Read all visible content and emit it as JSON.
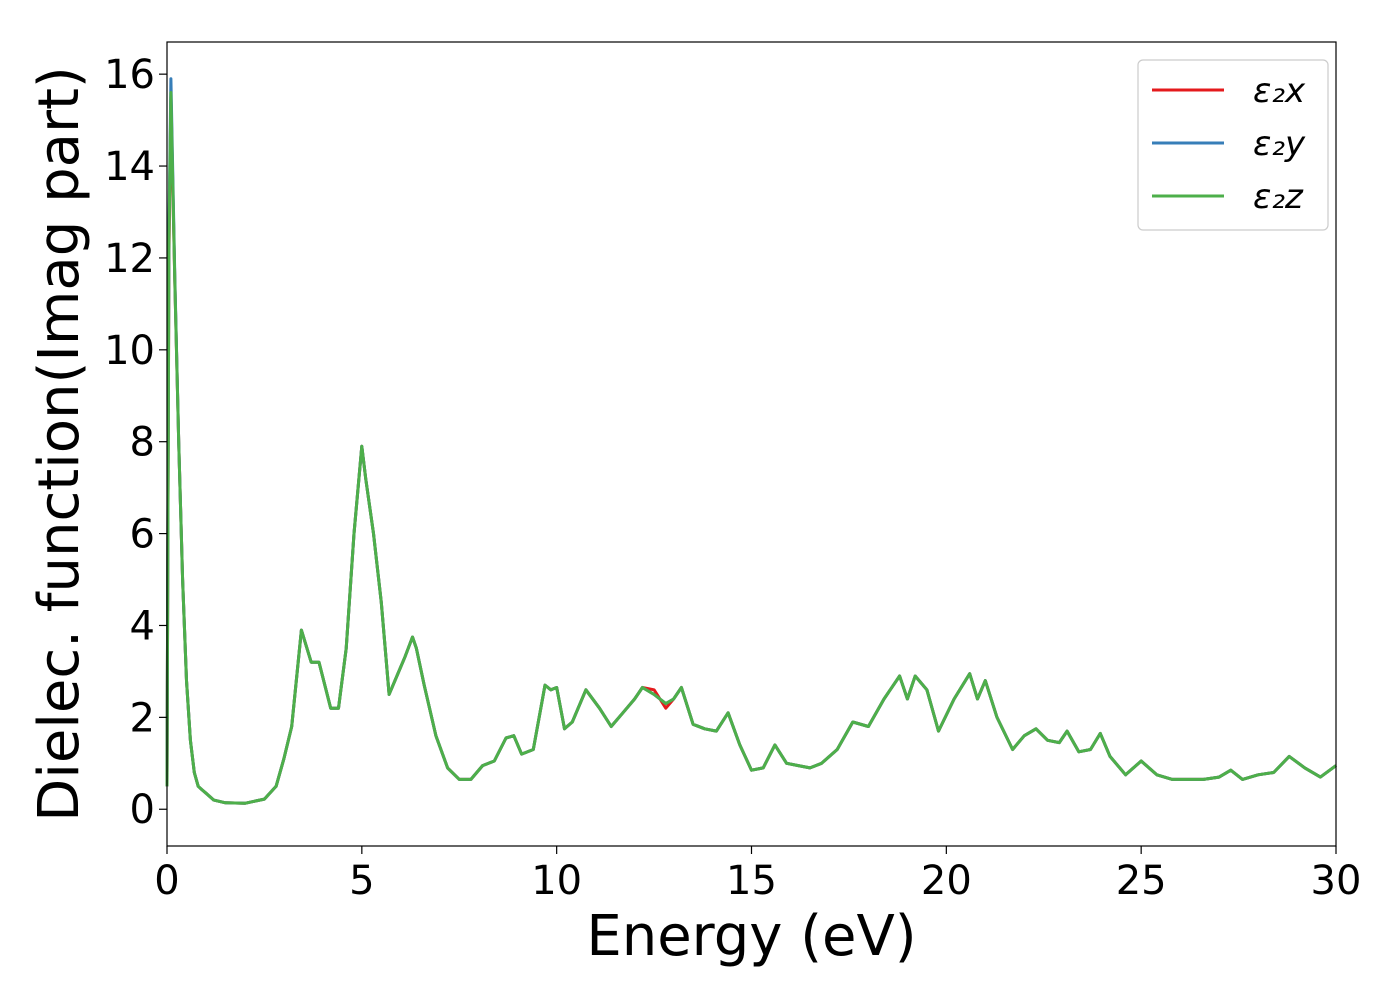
{
  "chart_data": {
    "type": "line",
    "xlabel": "Energy (eV)",
    "ylabel": "Dielec. function(Imag part)",
    "xlim": [
      0,
      30
    ],
    "ylim": [
      -0.8,
      16.7
    ],
    "xticks": [
      0,
      5,
      10,
      15,
      20,
      25,
      30
    ],
    "yticks": [
      0,
      2,
      4,
      6,
      8,
      10,
      12,
      14,
      16
    ],
    "grid": false,
    "legend_position": "top-right",
    "series": [
      {
        "name": "ε₂x",
        "color": "#e41a1c",
        "x": [
          0,
          0.05,
          0.1,
          0.15,
          0.2,
          0.3,
          0.4,
          0.5,
          0.6,
          0.7,
          0.8,
          0.9,
          1.0,
          1.2,
          1.5,
          2.0,
          2.5,
          2.8,
          3.0,
          3.2,
          3.45,
          3.7,
          3.9,
          4.2,
          4.4,
          4.6,
          4.8,
          5.0,
          5.1,
          5.3,
          5.5,
          5.7,
          5.9,
          6.1,
          6.3,
          6.4,
          6.6,
          6.9,
          7.2,
          7.5,
          7.8,
          8.1,
          8.4,
          8.7,
          8.9,
          9.1,
          9.4,
          9.7,
          9.85,
          10.0,
          10.2,
          10.4,
          10.75,
          11.1,
          11.4,
          11.7,
          12.0,
          12.2,
          12.5,
          12.8,
          13.0,
          13.2,
          13.5,
          13.8,
          14.1,
          14.4,
          14.7,
          15.0,
          15.3,
          15.6,
          15.9,
          16.2,
          16.5,
          16.8,
          17.2,
          17.6,
          18.0,
          18.4,
          18.8,
          19.0,
          19.2,
          19.5,
          19.8,
          20.2,
          20.6,
          20.8,
          21.0,
          21.3,
          21.7,
          22.0,
          22.3,
          22.6,
          22.9,
          23.1,
          23.4,
          23.7,
          23.95,
          24.2,
          24.6,
          25.0,
          25.4,
          25.8,
          26.2,
          26.6,
          27.0,
          27.3,
          27.6,
          28.0,
          28.4,
          28.8,
          29.2,
          29.6,
          30.0
        ],
        "values": [
          0.5,
          12.0,
          15.5,
          13.5,
          11.5,
          8.0,
          5.0,
          2.8,
          1.5,
          0.8,
          0.5,
          0.42,
          0.35,
          0.2,
          0.14,
          0.13,
          0.22,
          0.5,
          1.1,
          1.8,
          3.9,
          3.2,
          3.2,
          2.2,
          2.2,
          3.5,
          6.0,
          7.9,
          7.2,
          6.0,
          4.5,
          2.5,
          2.9,
          3.3,
          3.75,
          3.5,
          2.7,
          1.6,
          0.9,
          0.65,
          0.65,
          0.95,
          1.05,
          1.55,
          1.6,
          1.2,
          1.3,
          2.7,
          2.6,
          2.65,
          1.75,
          1.9,
          2.6,
          2.2,
          1.8,
          2.1,
          2.4,
          2.65,
          2.6,
          2.2,
          2.4,
          2.65,
          1.85,
          1.75,
          1.7,
          2.1,
          1.4,
          0.85,
          0.9,
          1.4,
          1.0,
          0.95,
          0.9,
          1.0,
          1.3,
          1.9,
          1.8,
          2.4,
          2.9,
          2.4,
          2.9,
          2.6,
          1.7,
          2.4,
          2.95,
          2.4,
          2.8,
          2.0,
          1.3,
          1.6,
          1.75,
          1.5,
          1.45,
          1.7,
          1.25,
          1.3,
          1.65,
          1.15,
          0.75,
          1.05,
          0.75,
          0.65,
          0.65,
          0.65,
          0.7,
          0.85,
          0.65,
          0.75,
          0.8,
          1.15,
          0.9,
          0.7,
          0.95
        ]
      },
      {
        "name": "ε₂y",
        "color": "#377eb8",
        "x": [
          0,
          0.05,
          0.1,
          0.15,
          0.2,
          0.3,
          0.4,
          0.5,
          0.6,
          0.7,
          0.8,
          0.9,
          1.0,
          1.2,
          1.5,
          2.0,
          2.5,
          2.8,
          3.0,
          3.2,
          3.45,
          3.7,
          3.9,
          4.2,
          4.4,
          4.6,
          4.8,
          5.0,
          5.1,
          5.3,
          5.5,
          5.7,
          5.9,
          6.1,
          6.3,
          6.4,
          6.6,
          6.9,
          7.2,
          7.5,
          7.8,
          8.1,
          8.4,
          8.7,
          8.9,
          9.1,
          9.4,
          9.7,
          9.85,
          10.0,
          10.2,
          10.4,
          10.75,
          11.1,
          11.4,
          11.7,
          12.0,
          12.2,
          12.5,
          12.8,
          13.0,
          13.2,
          13.5,
          13.8,
          14.1,
          14.4,
          14.7,
          15.0,
          15.3,
          15.6,
          15.9,
          16.2,
          16.5,
          16.8,
          17.2,
          17.6,
          18.0,
          18.4,
          18.8,
          19.0,
          19.2,
          19.5,
          19.8,
          20.2,
          20.6,
          20.8,
          21.0,
          21.3,
          21.7,
          22.0,
          22.3,
          22.6,
          22.9,
          23.1,
          23.4,
          23.7,
          23.95,
          24.2,
          24.6,
          25.0,
          25.4,
          25.8,
          26.2,
          26.6,
          27.0,
          27.3,
          27.6,
          28.0,
          28.4,
          28.8,
          29.2,
          29.6,
          30.0
        ],
        "values": [
          0.5,
          12.5,
          15.9,
          13.8,
          11.6,
          8.0,
          5.0,
          2.8,
          1.5,
          0.8,
          0.5,
          0.42,
          0.35,
          0.2,
          0.14,
          0.13,
          0.22,
          0.5,
          1.1,
          1.8,
          3.9,
          3.2,
          3.2,
          2.2,
          2.2,
          3.5,
          6.0,
          7.9,
          7.2,
          6.0,
          4.5,
          2.5,
          2.9,
          3.3,
          3.75,
          3.5,
          2.7,
          1.6,
          0.9,
          0.65,
          0.65,
          0.95,
          1.05,
          1.55,
          1.6,
          1.2,
          1.3,
          2.7,
          2.6,
          2.65,
          1.75,
          1.9,
          2.6,
          2.2,
          1.8,
          2.1,
          2.4,
          2.65,
          2.5,
          2.3,
          2.4,
          2.65,
          1.85,
          1.75,
          1.7,
          2.1,
          1.4,
          0.85,
          0.9,
          1.4,
          1.0,
          0.95,
          0.9,
          1.0,
          1.3,
          1.9,
          1.8,
          2.4,
          2.9,
          2.4,
          2.9,
          2.6,
          1.7,
          2.4,
          2.95,
          2.4,
          2.8,
          2.0,
          1.3,
          1.6,
          1.75,
          1.5,
          1.45,
          1.7,
          1.25,
          1.3,
          1.65,
          1.15,
          0.75,
          1.05,
          0.75,
          0.65,
          0.65,
          0.65,
          0.7,
          0.85,
          0.65,
          0.75,
          0.8,
          1.15,
          0.9,
          0.7,
          0.95
        ]
      },
      {
        "name": "ε₂z",
        "color": "#4daf4a",
        "x": [
          0,
          0.05,
          0.1,
          0.15,
          0.2,
          0.3,
          0.4,
          0.5,
          0.6,
          0.7,
          0.8,
          0.9,
          1.0,
          1.2,
          1.5,
          2.0,
          2.5,
          2.8,
          3.0,
          3.2,
          3.45,
          3.7,
          3.9,
          4.2,
          4.4,
          4.6,
          4.8,
          5.0,
          5.1,
          5.3,
          5.5,
          5.7,
          5.9,
          6.1,
          6.3,
          6.4,
          6.6,
          6.9,
          7.2,
          7.5,
          7.8,
          8.1,
          8.4,
          8.7,
          8.9,
          9.1,
          9.4,
          9.7,
          9.85,
          10.0,
          10.2,
          10.4,
          10.75,
          11.1,
          11.4,
          11.7,
          12.0,
          12.2,
          12.5,
          12.8,
          13.0,
          13.2,
          13.5,
          13.8,
          14.1,
          14.4,
          14.7,
          15.0,
          15.3,
          15.6,
          15.9,
          16.2,
          16.5,
          16.8,
          17.2,
          17.6,
          18.0,
          18.4,
          18.8,
          19.0,
          19.2,
          19.5,
          19.8,
          20.2,
          20.6,
          20.8,
          21.0,
          21.3,
          21.7,
          22.0,
          22.3,
          22.6,
          22.9,
          23.1,
          23.4,
          23.7,
          23.95,
          24.2,
          24.6,
          25.0,
          25.4,
          25.8,
          26.2,
          26.6,
          27.0,
          27.3,
          27.6,
          28.0,
          28.4,
          28.8,
          29.2,
          29.6,
          30.0
        ],
        "values": [
          0.5,
          12.2,
          15.6,
          13.6,
          11.5,
          8.0,
          5.0,
          2.8,
          1.5,
          0.8,
          0.5,
          0.42,
          0.35,
          0.2,
          0.14,
          0.13,
          0.22,
          0.5,
          1.1,
          1.8,
          3.9,
          3.2,
          3.2,
          2.2,
          2.2,
          3.5,
          6.0,
          7.9,
          7.2,
          6.0,
          4.5,
          2.5,
          2.9,
          3.3,
          3.75,
          3.5,
          2.7,
          1.6,
          0.9,
          0.65,
          0.65,
          0.95,
          1.05,
          1.55,
          1.6,
          1.2,
          1.3,
          2.7,
          2.6,
          2.65,
          1.75,
          1.9,
          2.6,
          2.2,
          1.8,
          2.1,
          2.4,
          2.65,
          2.5,
          2.3,
          2.4,
          2.65,
          1.85,
          1.75,
          1.7,
          2.1,
          1.4,
          0.85,
          0.9,
          1.4,
          1.0,
          0.95,
          0.9,
          1.0,
          1.3,
          1.9,
          1.8,
          2.4,
          2.9,
          2.4,
          2.9,
          2.6,
          1.7,
          2.4,
          2.95,
          2.4,
          2.8,
          2.0,
          1.3,
          1.6,
          1.75,
          1.5,
          1.45,
          1.7,
          1.25,
          1.3,
          1.65,
          1.15,
          0.75,
          1.05,
          0.75,
          0.65,
          0.65,
          0.65,
          0.7,
          0.85,
          0.65,
          0.75,
          0.8,
          1.15,
          0.9,
          0.7,
          0.95
        ]
      }
    ]
  }
}
